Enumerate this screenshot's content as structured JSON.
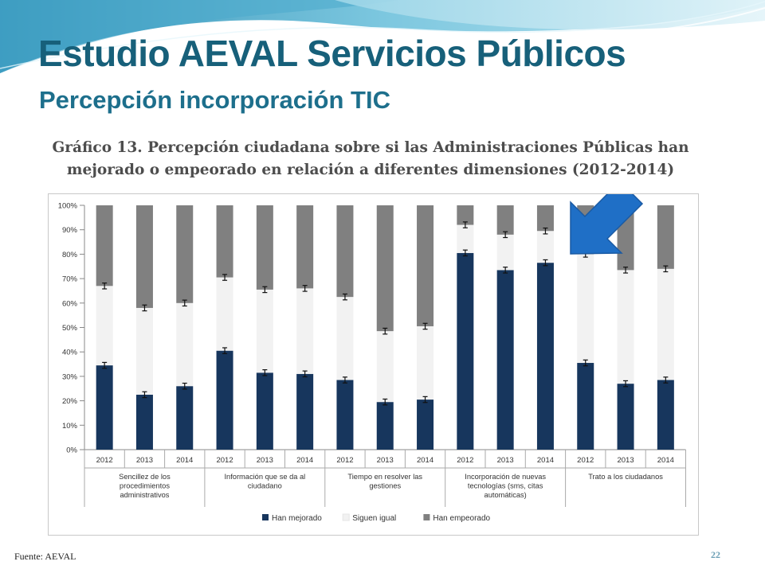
{
  "slide": {
    "title": "Estudio AEVAL Servicios Públicos",
    "subtitle": "Percepción incorporación TIC",
    "chart_heading": "Gráfico 13. Percepción ciudadana sobre si las Administraciones Públicas han mejorado o empeorado en relación a diferentes dimensiones (2012-2014)",
    "source": "Fuente: AEVAL",
    "page_number": "22"
  },
  "colors": {
    "title": "#17607a",
    "improved": "#17365d",
    "same": "#f2f2f2",
    "worse": "#808080",
    "arrow": "#1f6fc6"
  },
  "chart_data": {
    "type": "bar",
    "stacked": true,
    "percent": true,
    "ylim": [
      0,
      100
    ],
    "yticks": [
      "0%",
      "10%",
      "20%",
      "30%",
      "40%",
      "50%",
      "60%",
      "70%",
      "80%",
      "90%",
      "100%"
    ],
    "groups": [
      {
        "label": "Sencillez de los procedimientos administrativos",
        "years": [
          "2012",
          "2013",
          "2014"
        ]
      },
      {
        "label": "Información que se da al ciudadano",
        "years": [
          "2012",
          "2013",
          "2014"
        ]
      },
      {
        "label": "Tiempo en resolver las gestiones",
        "years": [
          "2012",
          "2013",
          "2014"
        ]
      },
      {
        "label": "Incorporación de nuevas tecnologías (sms, citas automáticas)",
        "years": [
          "2012",
          "2013",
          "2014"
        ]
      },
      {
        "label": "Trato a los ciudadanos",
        "years": [
          "2012",
          "2013",
          "2014"
        ]
      }
    ],
    "series": [
      {
        "name": "Han mejorado",
        "values": [
          34.5,
          22.5,
          26,
          40.5,
          31.5,
          31,
          28.5,
          19.5,
          20.5,
          80.5,
          73.5,
          76.5,
          35.5,
          27,
          28.5
        ]
      },
      {
        "name": "Siguen igual",
        "values": [
          32.5,
          35.5,
          34,
          30,
          34,
          35,
          34,
          29,
          30,
          11.5,
          14.5,
          13,
          44.5,
          46.5,
          45.5
        ]
      },
      {
        "name": "Han empeorado",
        "values": [
          33,
          42,
          40,
          29.5,
          34.5,
          34,
          37.5,
          51.5,
          49.5,
          8,
          12,
          10.5,
          20,
          26.5,
          26
        ]
      }
    ],
    "error_bar_half_width_pct": 1.2,
    "legend_position": "bottom",
    "grid": false,
    "annotation": "arrow pointing to Incorporación de nuevas tecnologías 2014"
  }
}
